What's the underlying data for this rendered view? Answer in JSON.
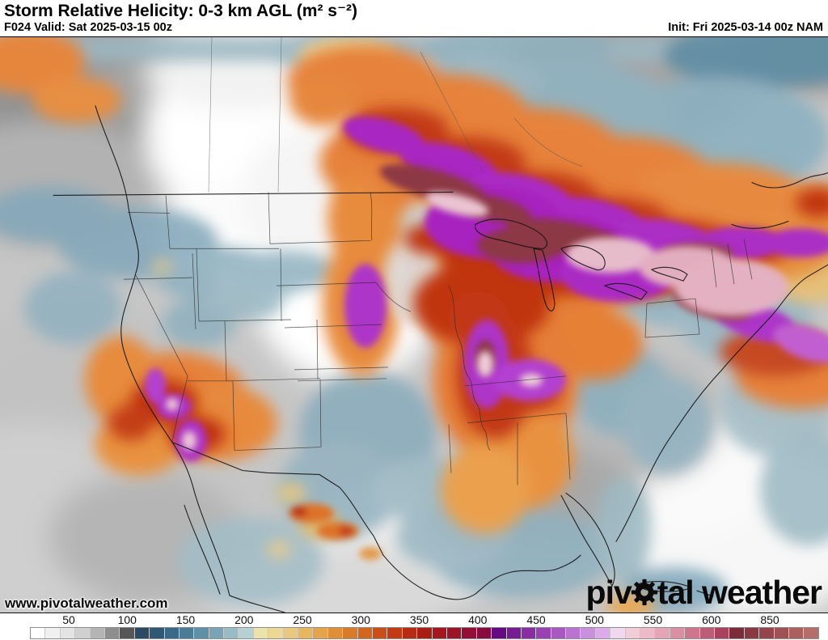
{
  "header": {
    "title": "Storm Relative Helicity: 0-3 km AGL (m² s⁻²)",
    "forecast_line": "F024 Valid: Sat 2025-03-15 00z",
    "init_line": "Init: Fri 2025-03-14 00z NAM"
  },
  "map": {
    "watermark": "www.pivotalweather.com",
    "logo": {
      "part1": "piv",
      "part2": "tal",
      "part3": " weather"
    },
    "region_colors": {
      "low_gray": "#c6c6c6",
      "marine_blue": "#8fafc0",
      "teal_dark": "#2b4960",
      "tan": "#e9c87d",
      "orange": "#e6823b",
      "red": "#c33a16",
      "crimson": "#9d1328",
      "purple": "#a928c2",
      "maroon": "#8d3944",
      "pale_pink": "#eac4d2",
      "rose": "#cd768d"
    }
  },
  "colorbar": {
    "units": "m² s⁻²",
    "tick_labels": [
      "50",
      "100",
      "150",
      "200",
      "250",
      "300",
      "350",
      "400",
      "450",
      "500",
      "550",
      "600",
      "850"
    ],
    "tick_start_x": 85,
    "tick_spacing_x": 72.25,
    "cell_colors": [
      "#ffffff",
      "#f0f0f0",
      "#e4e4e4",
      "#d0d0d0",
      "#b4b4b4",
      "#8e8e8e",
      "#565656",
      "#2b4960",
      "#305873",
      "#3a6888",
      "#4b7b97",
      "#6090a7",
      "#7aa4b5",
      "#98bcc6",
      "#b6d1d4",
      "#ebe3ab",
      "#ecd795",
      "#ebc87b",
      "#e9b660",
      "#e5a34b",
      "#e08f38",
      "#da7b29",
      "#d4651c",
      "#cb4e16",
      "#c33b13",
      "#b72b12",
      "#aa1d13",
      "#a4181d",
      "#9d1328",
      "#930f33",
      "#870b3c",
      "#660a84",
      "#771b95",
      "#882da4",
      "#9941b3",
      "#a958c2",
      "#ba73d0",
      "#cb8fdf",
      "#ddabeb",
      "#f0d8ef",
      "#f1cdd8",
      "#ecbac8",
      "#e4a5b7",
      "#da8fa3",
      "#cd768d",
      "#bd5c76",
      "#aa415e",
      "#7d2b3a",
      "#8a3842",
      "#95444b",
      "#a05154",
      "#ab5f5e",
      "#b56d69"
    ]
  }
}
